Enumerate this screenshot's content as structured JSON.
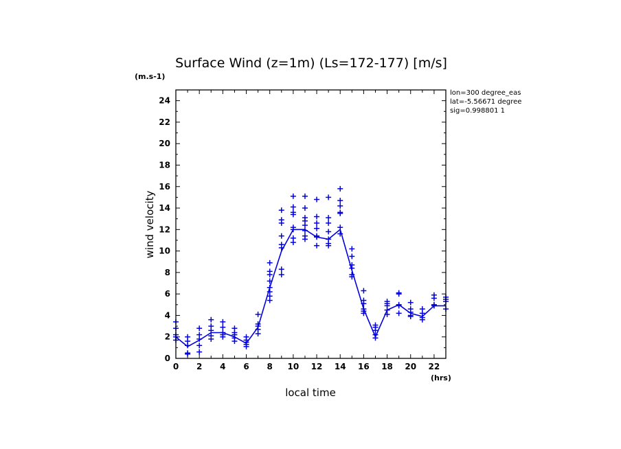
{
  "chart_data": {
    "type": "line",
    "title": "Surface Wind (z=1m) (Ls=172-177) [m/s]",
    "ylabel": "wind velocity",
    "yunit": "(m.s-1)",
    "xlabel": "local time",
    "xunit": "(hrs)",
    "xlim": [
      0,
      23
    ],
    "ylim": [
      0,
      25
    ],
    "xticks": [
      0,
      2,
      4,
      6,
      8,
      10,
      12,
      14,
      16,
      18,
      20,
      22
    ],
    "yticks": [
      0,
      2,
      4,
      6,
      8,
      10,
      12,
      14,
      16,
      18,
      20,
      22,
      24
    ],
    "grid": false,
    "color": "#0000e0",
    "info": [
      "lon=300 degree_eas",
      "lat=-5.56671 degree",
      "sig=0.998801 1"
    ],
    "series": [
      {
        "kind": "mean-line",
        "x": [
          0,
          1,
          2,
          3,
          4,
          5,
          6,
          7,
          8,
          9,
          10,
          11,
          12,
          13,
          14,
          15,
          16,
          17,
          18,
          19,
          20,
          21,
          22,
          23
        ],
        "y": [
          2.0,
          1.1,
          1.7,
          2.4,
          2.4,
          2.0,
          1.4,
          2.9,
          6.6,
          10.0,
          12.0,
          12.0,
          11.3,
          11.1,
          12.0,
          8.2,
          4.6,
          2.0,
          4.5,
          5.0,
          4.2,
          3.9,
          4.9,
          4.9
        ]
      },
      {
        "kind": "sample-markers",
        "x": [
          0,
          0,
          0,
          0,
          0,
          1,
          1,
          1,
          1,
          1,
          2,
          2,
          2,
          2,
          2,
          3,
          3,
          3,
          3,
          3,
          4,
          4,
          4,
          4,
          4,
          5,
          5,
          5,
          5,
          5,
          6,
          6,
          6,
          6,
          6,
          7,
          7,
          7,
          7,
          7,
          8,
          8,
          8,
          8,
          8,
          8,
          8,
          8,
          9,
          9,
          9,
          9,
          9,
          9,
          9,
          9,
          10,
          10,
          10,
          10,
          10,
          10,
          10,
          10,
          11,
          11,
          11,
          11,
          11,
          11,
          11,
          11,
          12,
          12,
          12,
          12,
          12,
          12,
          12,
          13,
          13,
          13,
          13,
          13,
          13,
          13,
          14,
          14,
          14,
          14,
          14,
          14,
          14,
          15,
          15,
          15,
          15,
          15,
          15,
          16,
          16,
          16,
          16,
          16,
          16,
          17,
          17,
          17,
          17,
          17,
          18,
          18,
          18,
          18,
          18,
          19,
          19,
          19,
          19,
          19,
          20,
          20,
          20,
          20,
          20,
          21,
          21,
          21,
          21,
          22,
          22,
          22,
          22,
          23,
          23,
          23,
          23
        ],
        "y": [
          3.4,
          2.8,
          2.2,
          2.0,
          1.7,
          2.0,
          1.6,
          1.2,
          0.5,
          0.4,
          2.8,
          2.2,
          1.8,
          1.2,
          0.6,
          3.6,
          3.0,
          2.6,
          2.1,
          1.8,
          3.4,
          2.9,
          2.4,
          2.2,
          2.0,
          2.8,
          2.4,
          2.2,
          1.9,
          1.6,
          2.0,
          1.7,
          1.5,
          1.3,
          1.1,
          4.1,
          3.2,
          3.0,
          2.7,
          2.3,
          8.9,
          8.1,
          7.8,
          7.2,
          6.6,
          6.2,
          5.8,
          5.4,
          13.8,
          12.9,
          12.6,
          11.4,
          10.6,
          10.3,
          8.3,
          7.8,
          15.1,
          14.1,
          13.6,
          13.4,
          12.2,
          12.0,
          11.2,
          10.8,
          15.1,
          14.0,
          13.1,
          12.8,
          12.4,
          11.9,
          11.4,
          11.1,
          14.8,
          13.2,
          12.6,
          12.1,
          11.4,
          11.3,
          10.5,
          15.0,
          13.1,
          12.6,
          11.8,
          11.1,
          10.7,
          10.5,
          15.8,
          14.7,
          14.2,
          13.6,
          13.5,
          12.2,
          11.6,
          10.2,
          9.5,
          8.7,
          8.4,
          7.8,
          7.6,
          6.3,
          5.4,
          5.1,
          4.6,
          4.4,
          4.2,
          3.1,
          2.9,
          2.6,
          2.2,
          1.9,
          5.3,
          5.1,
          4.9,
          4.5,
          4.1,
          6.1,
          6.0,
          5.0,
          4.9,
          4.2,
          5.2,
          4.6,
          4.3,
          4.0,
          3.9,
          4.6,
          4.2,
          3.8,
          3.6,
          5.9,
          5.6,
          5.0,
          4.9,
          5.7,
          5.5,
          5.3,
          4.6
        ]
      }
    ]
  }
}
